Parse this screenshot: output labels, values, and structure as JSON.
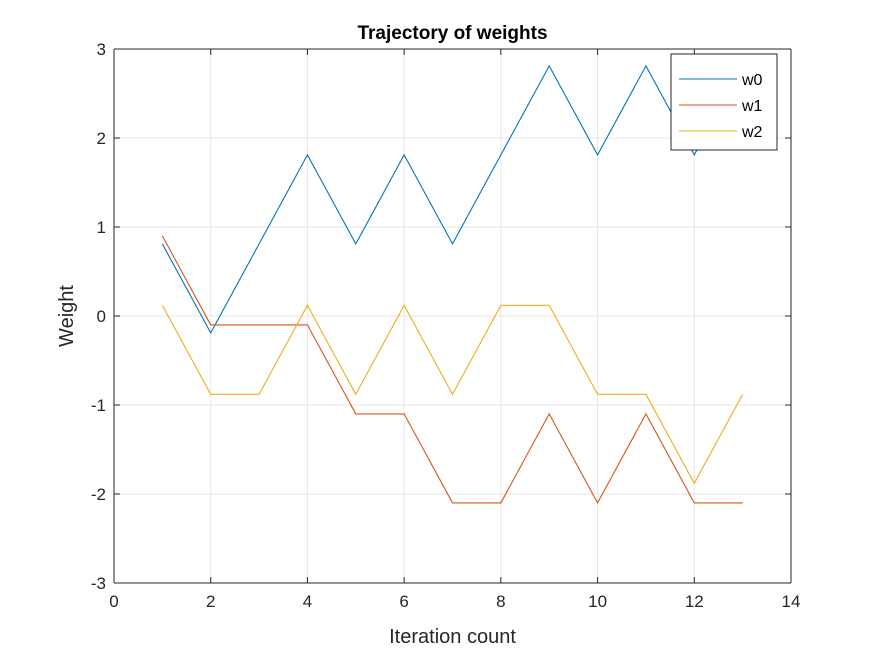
{
  "chart_data": {
    "type": "line",
    "title": "Trajectory of weights",
    "xlabel": "Iteration count",
    "ylabel": "Weight",
    "xlim": [
      0,
      14
    ],
    "ylim": [
      -3,
      3
    ],
    "xticks": [
      0,
      2,
      4,
      6,
      8,
      10,
      12,
      14
    ],
    "yticks": [
      -3,
      -2,
      -1,
      0,
      1,
      2,
      3
    ],
    "grid": true,
    "legend_position": "top-right",
    "x": [
      1,
      2,
      3,
      4,
      5,
      6,
      7,
      8,
      9,
      10,
      11,
      12,
      13
    ],
    "series": [
      {
        "name": "w0",
        "color": "#0072BD",
        "values": [
          0.81,
          -0.19,
          0.81,
          1.81,
          0.81,
          1.81,
          0.81,
          1.81,
          2.81,
          1.81,
          2.81,
          1.81,
          2.81
        ]
      },
      {
        "name": "w1",
        "color": "#D95319",
        "values": [
          0.9,
          -0.1,
          -0.1,
          -0.1,
          -1.1,
          -1.1,
          -2.1,
          -2.1,
          -1.1,
          -2.1,
          -1.1,
          -2.1,
          -2.1
        ]
      },
      {
        "name": "w2",
        "color": "#EDB120",
        "values": [
          0.12,
          -0.88,
          -0.88,
          0.12,
          -0.88,
          0.12,
          -0.88,
          0.12,
          0.12,
          -0.88,
          -0.88,
          -1.88,
          -0.88
        ]
      }
    ]
  }
}
